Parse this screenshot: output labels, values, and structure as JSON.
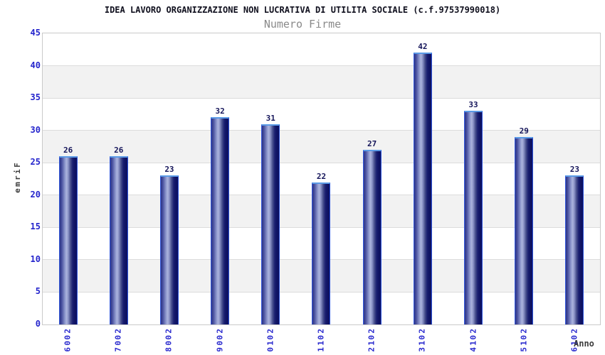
{
  "header": {
    "title": "IDEA LAVORO ORGANIZZAZIONE NON LUCRATIVA DI UTILITA SOCIALE (c.f.97537990018)",
    "subtitle": "Numero Firme"
  },
  "chart_data": {
    "type": "bar",
    "title": "IDEA LAVORO ORGANIZZAZIONE NON LUCRATIVA DI UTILITA SOCIALE (c.f.97537990018)",
    "subtitle": "Numero Firme",
    "xlabel": "Anno",
    "ylabel": "Firme",
    "categories": [
      "2006",
      "2007",
      "2008",
      "2009",
      "2010",
      "2011",
      "2012",
      "2013",
      "2014",
      "2015",
      "2016"
    ],
    "values": [
      26,
      26,
      23,
      32,
      31,
      22,
      27,
      42,
      33,
      29,
      23
    ],
    "ylim": [
      0,
      45
    ],
    "yticks": [
      0,
      5,
      10,
      15,
      20,
      25,
      30,
      35,
      40,
      45
    ],
    "grid": "horizontal-bands-alternating",
    "legend": "none",
    "colors": {
      "bar_dark": "#0d1160",
      "bar_mid": "#2e3587",
      "bar_highlight": "#abb3dd",
      "bar_outline": "#5a9ae6",
      "tick_label_blue": "#2424cc",
      "value_label_navy": "#15155a",
      "axis_title_gray": "#3c3c3c",
      "subtitle_gray": "#8a8a8a",
      "band_gray": "#f2f2f2",
      "gridline_gray": "#dcdcdc",
      "plot_border": "#c9c9c9",
      "background": "#ffffff"
    }
  }
}
